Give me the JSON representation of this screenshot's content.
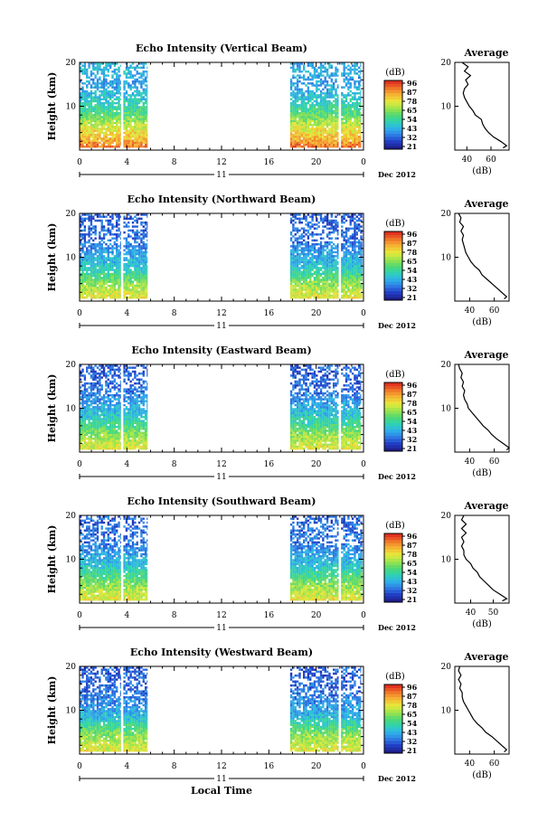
{
  "figure": {
    "xlabel": "Local Time",
    "date_label": "Dec 2012",
    "day_label": "11",
    "avg_title": "Average",
    "avg_xlabel": "(dB)",
    "colorbar_unit": "(dB)",
    "colorbar_ticks": [
      "96",
      "87",
      "78",
      "65",
      "54",
      "43",
      "32",
      "21"
    ],
    "colors": {
      "profile_line": "#000000",
      "scale_low": "#1a1a9a",
      "scale_mid": "#22c7a0",
      "scale_high": "#e51b1b"
    }
  },
  "chart_data": [
    {
      "type": "heatmap",
      "title": "Echo Intensity (Vertical Beam)",
      "ylabel": "Height (km)",
      "x_ticks": [
        "0",
        "4",
        "8",
        "12",
        "16",
        "20",
        "0"
      ],
      "y_ticks": [
        "20",
        "10"
      ],
      "xlim": [
        0,
        24
      ],
      "ylim": [
        0,
        20
      ],
      "color_range": [
        21,
        96
      ],
      "data_intervals_hours": [
        [
          0,
          3.5
        ],
        [
          3.7,
          5.7
        ],
        [
          17.8,
          21.9
        ],
        [
          22.1,
          23.8
        ]
      ],
      "intensity_by_height": [
        {
          "height": 0.5,
          "db": 90
        },
        {
          "height": 2,
          "db": 82
        },
        {
          "height": 4,
          "db": 76
        },
        {
          "height": 6,
          "db": 68
        },
        {
          "height": 8,
          "db": 58
        },
        {
          "height": 10,
          "db": 52
        },
        {
          "height": 12,
          "db": 46
        },
        {
          "height": 14,
          "db": 42
        },
        {
          "height": 16,
          "db": 40
        },
        {
          "height": 18,
          "db": 44
        },
        {
          "height": 20,
          "db": 42
        }
      ],
      "average_profile": {
        "x_ticks": [
          "40",
          "60"
        ],
        "y_ticks": [
          "20",
          "10"
        ],
        "xlim": [
          30,
          75
        ],
        "ylim": [
          0,
          20
        ],
        "heights": [
          0.5,
          1,
          2,
          3,
          4,
          5,
          6,
          7,
          8,
          9,
          10,
          11,
          12,
          13,
          14,
          15,
          16,
          17,
          18,
          19,
          20
        ],
        "db": [
          70,
          73,
          68,
          62,
          58,
          55,
          53,
          52,
          47,
          45,
          42,
          40,
          38,
          37,
          38,
          41,
          39,
          43,
          38,
          41,
          36
        ]
      }
    },
    {
      "type": "heatmap",
      "title": "Echo Intensity (Northward Beam)",
      "ylabel": "Height (km)",
      "x_ticks": [
        "0",
        "4",
        "8",
        "12",
        "16",
        "20",
        "0"
      ],
      "y_ticks": [
        "20",
        "10"
      ],
      "xlim": [
        0,
        24
      ],
      "ylim": [
        0,
        20
      ],
      "color_range": [
        21,
        96
      ],
      "data_intervals_hours": [
        [
          0,
          3.5
        ],
        [
          3.7,
          5.7
        ],
        [
          17.8,
          21.9
        ],
        [
          22.1,
          23.9
        ]
      ],
      "intensity_by_height": [
        {
          "height": 0.5,
          "db": 74
        },
        {
          "height": 2,
          "db": 70
        },
        {
          "height": 4,
          "db": 64
        },
        {
          "height": 6,
          "db": 54
        },
        {
          "height": 8,
          "db": 46
        },
        {
          "height": 10,
          "db": 42
        },
        {
          "height": 12,
          "db": 38
        },
        {
          "height": 14,
          "db": 34
        },
        {
          "height": 16,
          "db": 33
        },
        {
          "height": 18,
          "db": 32
        },
        {
          "height": 20,
          "db": 31
        }
      ],
      "average_profile": {
        "x_ticks": [
          "40",
          "60"
        ],
        "y_ticks": [
          "20",
          "10"
        ],
        "xlim": [
          28,
          72
        ],
        "ylim": [
          0,
          20
        ],
        "heights": [
          0.5,
          1,
          2,
          3,
          4,
          5,
          6,
          7,
          8,
          9,
          10,
          11,
          12,
          13,
          14,
          15,
          16,
          17,
          18,
          19,
          20
        ],
        "db": [
          68,
          70,
          66,
          62,
          58,
          54,
          50,
          48,
          44,
          41,
          39,
          37,
          36,
          35,
          34,
          35,
          33,
          35,
          32,
          33,
          31
        ]
      }
    },
    {
      "type": "heatmap",
      "title": "Echo Intensity (Eastward Beam)",
      "ylabel": "Height (km)",
      "x_ticks": [
        "0",
        "4",
        "8",
        "12",
        "16",
        "20",
        "0"
      ],
      "y_ticks": [
        "20",
        "10"
      ],
      "xlim": [
        0,
        24
      ],
      "ylim": [
        0,
        20
      ],
      "color_range": [
        21,
        96
      ],
      "data_intervals_hours": [
        [
          0,
          3.5
        ],
        [
          3.7,
          5.7
        ],
        [
          17.8,
          21.9
        ],
        [
          22.1,
          23.8
        ]
      ],
      "intensity_by_height": [
        {
          "height": 0.5,
          "db": 74
        },
        {
          "height": 2,
          "db": 70
        },
        {
          "height": 4,
          "db": 64
        },
        {
          "height": 6,
          "db": 55
        },
        {
          "height": 8,
          "db": 48
        },
        {
          "height": 10,
          "db": 43
        },
        {
          "height": 12,
          "db": 38
        },
        {
          "height": 14,
          "db": 34
        },
        {
          "height": 16,
          "db": 33
        },
        {
          "height": 18,
          "db": 32
        },
        {
          "height": 20,
          "db": 31
        }
      ],
      "average_profile": {
        "x_ticks": [
          "40",
          "60"
        ],
        "y_ticks": [
          "20",
          "10"
        ],
        "xlim": [
          28,
          72
        ],
        "ylim": [
          0,
          20
        ],
        "heights": [
          0.5,
          1,
          2,
          3,
          4,
          5,
          6,
          7,
          8,
          9,
          10,
          11,
          12,
          13,
          14,
          15,
          16,
          17,
          18,
          19,
          20
        ],
        "db": [
          70,
          72,
          67,
          62,
          58,
          55,
          51,
          48,
          45,
          42,
          39,
          38,
          36,
          35,
          36,
          34,
          35,
          33,
          34,
          32,
          31
        ]
      }
    },
    {
      "type": "heatmap",
      "title": "Echo Intensity (Southward Beam)",
      "ylabel": "Height (km)",
      "x_ticks": [
        "0",
        "4",
        "8",
        "12",
        "16",
        "20",
        "0"
      ],
      "y_ticks": [
        "20",
        "10"
      ],
      "xlim": [
        0,
        24
      ],
      "ylim": [
        0,
        20
      ],
      "color_range": [
        21,
        96
      ],
      "data_intervals_hours": [
        [
          0,
          3.5
        ],
        [
          3.7,
          5.7
        ],
        [
          17.8,
          21.9
        ],
        [
          22.1,
          23.9
        ]
      ],
      "intensity_by_height": [
        {
          "height": 0.5,
          "db": 74
        },
        {
          "height": 2,
          "db": 70
        },
        {
          "height": 4,
          "db": 64
        },
        {
          "height": 6,
          "db": 56
        },
        {
          "height": 8,
          "db": 48
        },
        {
          "height": 10,
          "db": 43
        },
        {
          "height": 12,
          "db": 38
        },
        {
          "height": 14,
          "db": 35
        },
        {
          "height": 16,
          "db": 34
        },
        {
          "height": 18,
          "db": 33
        },
        {
          "height": 20,
          "db": 32
        }
      ],
      "average_profile": {
        "x_ticks": [
          "40",
          "50"
        ],
        "y_ticks": [
          "20",
          "10"
        ],
        "xlim": [
          33,
          57
        ],
        "ylim": [
          0,
          20
        ],
        "heights": [
          0.5,
          1,
          2,
          3,
          4,
          5,
          6,
          7,
          8,
          9,
          10,
          11,
          12,
          13,
          14,
          15,
          16,
          17,
          18,
          19,
          20
        ],
        "db": [
          54,
          56,
          53,
          50,
          48,
          46,
          44,
          43,
          41,
          40,
          38,
          37,
          37,
          36,
          37,
          36,
          38,
          36,
          38,
          36,
          37
        ]
      }
    },
    {
      "type": "heatmap",
      "title": "Echo Intensity (Westward Beam)",
      "ylabel": "Height (km)",
      "x_ticks": [
        "0",
        "4",
        "8",
        "12",
        "16",
        "20",
        "0"
      ],
      "y_ticks": [
        "20",
        "10"
      ],
      "xlim": [
        0,
        24
      ],
      "ylim": [
        0,
        20
      ],
      "color_range": [
        21,
        96
      ],
      "data_intervals_hours": [
        [
          0,
          3.5
        ],
        [
          3.7,
          5.7
        ],
        [
          17.8,
          21.9
        ],
        [
          22.1,
          23.8
        ]
      ],
      "intensity_by_height": [
        {
          "height": 0.5,
          "db": 74
        },
        {
          "height": 2,
          "db": 70
        },
        {
          "height": 4,
          "db": 65
        },
        {
          "height": 6,
          "db": 56
        },
        {
          "height": 8,
          "db": 46
        },
        {
          "height": 10,
          "db": 41
        },
        {
          "height": 12,
          "db": 37
        },
        {
          "height": 14,
          "db": 34
        },
        {
          "height": 16,
          "db": 33
        },
        {
          "height": 18,
          "db": 32
        },
        {
          "height": 20,
          "db": 31
        }
      ],
      "average_profile": {
        "x_ticks": [
          "40",
          "60"
        ],
        "y_ticks": [
          "20",
          "10"
        ],
        "xlim": [
          28,
          72
        ],
        "ylim": [
          0,
          20
        ],
        "heights": [
          0.5,
          1,
          2,
          3,
          4,
          5,
          6,
          7,
          8,
          9,
          10,
          11,
          12,
          13,
          14,
          15,
          16,
          17,
          18,
          19,
          20
        ],
        "db": [
          68,
          70,
          66,
          62,
          58,
          53,
          50,
          46,
          43,
          41,
          39,
          37,
          35,
          34,
          34,
          32,
          33,
          31,
          33,
          31,
          32
        ]
      }
    }
  ]
}
